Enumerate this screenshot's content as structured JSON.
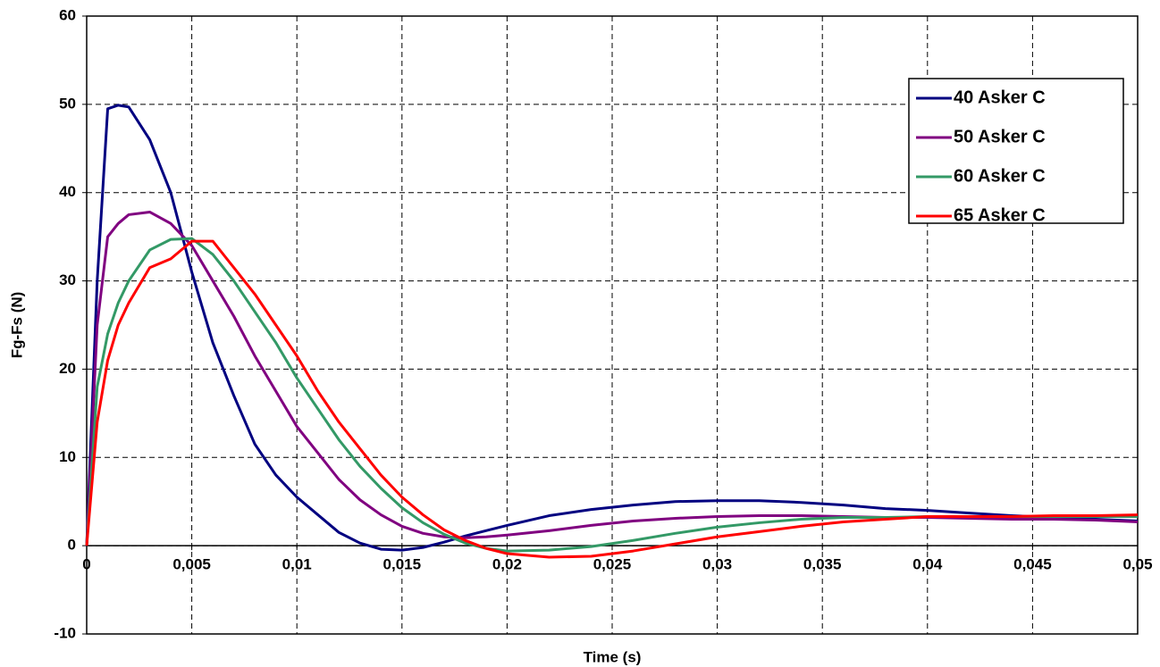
{
  "chart_data": {
    "type": "line",
    "x_label": "Time (s)",
    "y_label": "Fg-Fs (N)",
    "x": [
      0,
      0.0005,
      0.001,
      0.0015,
      0.002,
      0.003,
      0.004,
      0.005,
      0.006,
      0.007,
      0.008,
      0.009,
      0.01,
      0.011,
      0.012,
      0.013,
      0.014,
      0.015,
      0.016,
      0.017,
      0.018,
      0.019,
      0.02,
      0.022,
      0.024,
      0.026,
      0.028,
      0.03,
      0.032,
      0.034,
      0.036,
      0.038,
      0.04,
      0.042,
      0.044,
      0.046,
      0.048,
      0.05
    ],
    "series": [
      {
        "name": "40 Asker C",
        "color": "#000080",
        "values": [
          0,
          30,
          49.5,
          49.9,
          49.7,
          46,
          40,
          31,
          23,
          17,
          11.5,
          8,
          5.5,
          3.5,
          1.5,
          0.3,
          -0.4,
          -0.5,
          -0.2,
          0.4,
          1.1,
          1.7,
          2.3,
          3.4,
          4.1,
          4.6,
          5,
          5.1,
          5.1,
          4.9,
          4.6,
          4.2,
          4,
          3.7,
          3.4,
          3.2,
          3,
          2.8
        ]
      },
      {
        "name": "50 Asker C",
        "color": "#800080",
        "values": [
          0,
          25,
          35,
          36.5,
          37.5,
          37.8,
          36.5,
          34,
          30,
          26,
          21.5,
          17.5,
          13.5,
          10.5,
          7.5,
          5.2,
          3.5,
          2.2,
          1.4,
          1,
          0.9,
          1,
          1.2,
          1.7,
          2.3,
          2.8,
          3.1,
          3.3,
          3.4,
          3.4,
          3.3,
          3.2,
          3.2,
          3.1,
          3,
          3,
          2.9,
          2.7
        ]
      },
      {
        "name": "60 Asker C",
        "color": "#339966",
        "values": [
          0,
          18,
          24,
          27.5,
          30,
          33.5,
          34.7,
          34.8,
          33,
          30,
          26.5,
          23,
          19,
          15.5,
          12,
          9,
          6.5,
          4.3,
          2.6,
          1.3,
          0.3,
          -0.3,
          -0.6,
          -0.5,
          -0.1,
          0.6,
          1.4,
          2.1,
          2.6,
          3,
          3.2,
          3.2,
          3.3,
          3.3,
          3.3,
          3.3,
          3.3,
          3.3
        ]
      },
      {
        "name": "65 Asker C",
        "color": "#ff0000",
        "values": [
          0,
          14,
          21,
          25,
          27.5,
          31.5,
          32.5,
          34.5,
          34.5,
          31.5,
          28.5,
          25,
          21.5,
          17.5,
          14,
          11,
          8,
          5.5,
          3.5,
          1.8,
          0.6,
          -0.3,
          -0.9,
          -1.3,
          -1.2,
          -0.6,
          0.2,
          1,
          1.6,
          2.2,
          2.7,
          3,
          3.3,
          3.3,
          3.3,
          3.4,
          3.4,
          3.5
        ]
      }
    ],
    "xlim": [
      0,
      0.05
    ],
    "xticks": [
      0,
      {
        "value": 0.005,
        "label": "0,005"
      },
      {
        "value": 0.01,
        "label": "0,01"
      },
      {
        "value": 0.015,
        "label": "0,015"
      },
      {
        "value": 0.02,
        "label": "0,02"
      },
      {
        "value": 0.025,
        "label": "0,025"
      },
      {
        "value": 0.03,
        "label": "0,03"
      },
      {
        "value": 0.035,
        "label": "0,035"
      },
      {
        "value": 0.04,
        "label": "0,04"
      },
      {
        "value": 0.045,
        "label": "0,045"
      },
      {
        "value": 0.05,
        "label": "0,05"
      }
    ],
    "ylim": [
      -10,
      60
    ],
    "yticks": [
      -10,
      0,
      10,
      20,
      30,
      40,
      50,
      60
    ],
    "grid": true,
    "legend": "upper right"
  }
}
